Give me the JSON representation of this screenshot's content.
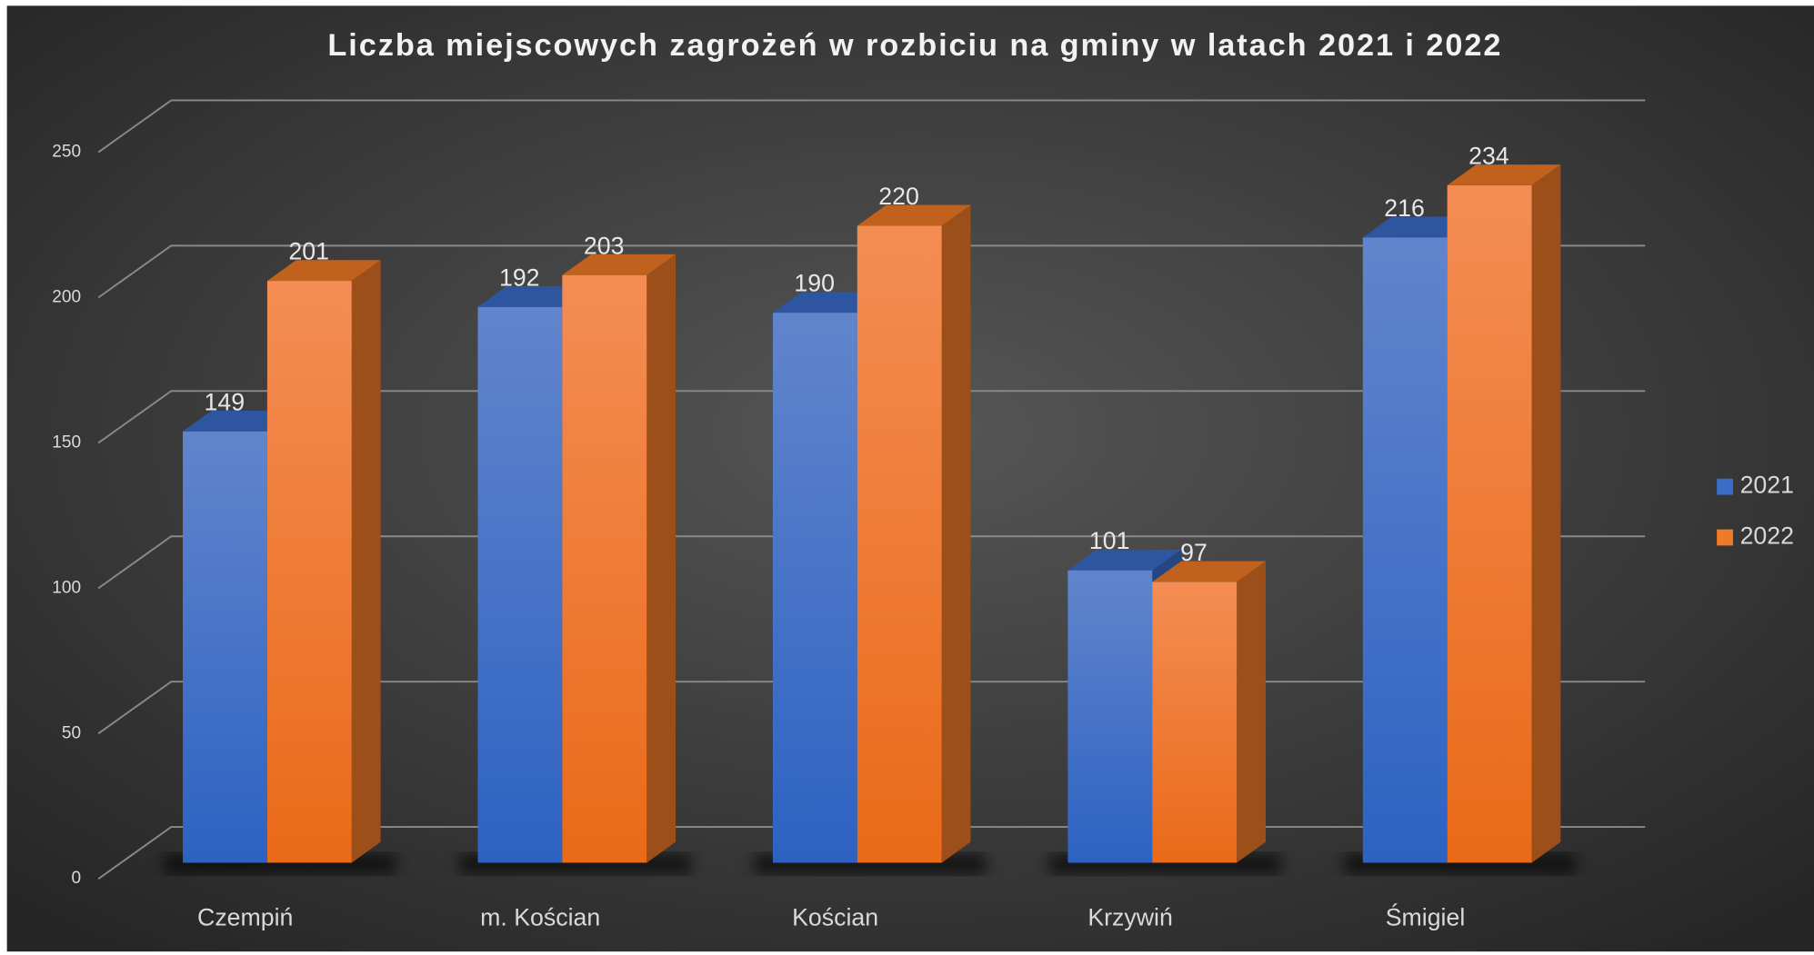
{
  "chart_data": {
    "type": "bar3d",
    "title": "Liczba miejscowych zagrożeń w rozbiciu na gminy w latach 2021 i 2022",
    "categories": [
      "Czempiń",
      "m. Kościan",
      "Kościan",
      "Krzywiń",
      "Śmigiel"
    ],
    "series": [
      {
        "name": "2021",
        "color": "#3a6cc8",
        "values": [
          149,
          192,
          190,
          101,
          216
        ]
      },
      {
        "name": "2022",
        "color": "#f07a26",
        "values": [
          201,
          203,
          220,
          97,
          234
        ]
      }
    ],
    "ylim": [
      0,
      250
    ],
    "yticks": [
      0,
      50,
      100,
      150,
      200,
      250
    ],
    "grid": true,
    "legend": "right"
  }
}
